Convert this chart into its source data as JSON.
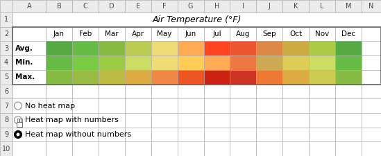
{
  "title": "Air Temperature (°F)",
  "months": [
    "Jan",
    "Feb",
    "Mar",
    "Apr",
    "May",
    "Jun",
    "Jul",
    "Aug",
    "Sep",
    "Oct",
    "Nov",
    "Dec"
  ],
  "col_letters": [
    "A",
    "B",
    "C",
    "D",
    "E",
    "F",
    "G",
    "H",
    "I",
    "J",
    "K",
    "L",
    "M",
    "N"
  ],
  "row_labels": [
    "Avg.",
    "Min.",
    "Max."
  ],
  "heat_colors": {
    "avg": [
      "#55aa44",
      "#66bb44",
      "#88bb44",
      "#bbcc55",
      "#eedd77",
      "#ffaa55",
      "#ff4422",
      "#ee5533",
      "#dd8844",
      "#ccaa44",
      "#aacc44",
      "#55aa44"
    ],
    "min": [
      "#66bb44",
      "#77cc44",
      "#99cc44",
      "#ccdd66",
      "#eedd77",
      "#ffcc55",
      "#ffaa55",
      "#ee7744",
      "#ccaa55",
      "#ddcc55",
      "#ccdd66",
      "#66bb44"
    ],
    "max": [
      "#88bb44",
      "#99bb44",
      "#bbbb44",
      "#ddaa44",
      "#ee8844",
      "#ee5522",
      "#cc2211",
      "#cc3322",
      "#ee7733",
      "#ddaa44",
      "#cccc55",
      "#88bb44"
    ]
  },
  "radio_items": [
    "No heat map",
    "Heat map with numbers",
    "Heat map without numbers"
  ],
  "radio_selected": [
    false,
    false,
    true
  ],
  "radio_hovered": [
    false,
    true,
    false
  ],
  "hdr_color": "#ececec",
  "white": "#ffffff",
  "border_color": "#b0b0b0",
  "text_color": "#444444"
}
